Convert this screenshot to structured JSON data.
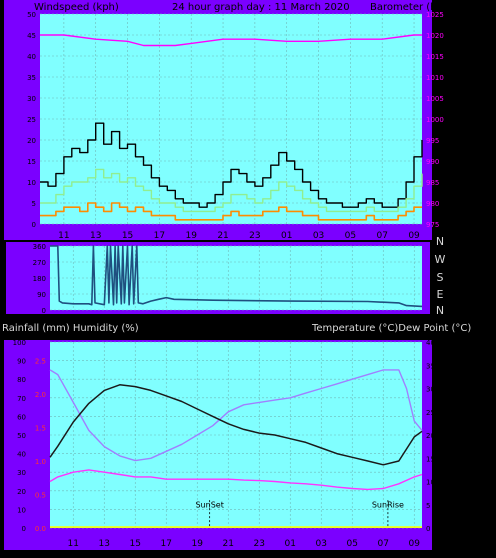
{
  "colors": {
    "frame_bg": "#7B00FF",
    "plot_bg": "#80FFFF",
    "grid": "#6FB8B8",
    "text": "#000000",
    "label_light": "#D8D8D8",
    "pressure": "#FF00FF",
    "wind_gust": "#000000",
    "wind_avg": "#90EE90",
    "wind_low": "#FF8C00",
    "direction": "#1F4F7F",
    "temperature": "#FF33FF",
    "humidity": "#1A1A1A",
    "dewpoint": "#A080FF",
    "rain": "#FFFF00"
  },
  "chart_data": [
    {
      "id": "wind_pressure",
      "type": "line",
      "title": "24 hour graph day : 11 March 2020",
      "left_axis_label": "Windspeed (kph)",
      "right_axis_label": "Barometer (hpa)",
      "x_tick_labels": [
        "11",
        "13",
        "15",
        "17",
        "19",
        "21",
        "23",
        "01",
        "03",
        "05",
        "07",
        "09"
      ],
      "left_ticks": [
        "0",
        "5",
        "10",
        "15",
        "20",
        "25",
        "30",
        "35",
        "40",
        "45",
        "50"
      ],
      "right_ticks": [
        "975",
        "980",
        "985",
        "990",
        "995",
        "1000",
        "1005",
        "1010",
        "1015",
        "1020",
        "1025"
      ],
      "left_range": [
        0,
        50
      ],
      "right_range": [
        975,
        1025
      ],
      "x_range": [
        9.5,
        33.5
      ],
      "series": {
        "pressure": {
          "x": [
            9.5,
            11,
            13,
            15,
            16,
            17,
            18,
            19,
            21,
            23,
            25,
            27,
            29,
            31,
            33,
            33.5
          ],
          "y": [
            1020,
            1020,
            1019,
            1018.5,
            1017.5,
            1017.5,
            1017.5,
            1018,
            1019,
            1019,
            1018.5,
            1018.5,
            1019,
            1019,
            1020,
            1020
          ]
        },
        "wind_gust": {
          "x": [
            9.5,
            10,
            10.5,
            11,
            11.5,
            12,
            12.5,
            13,
            13.5,
            14,
            14.5,
            15,
            15.5,
            16,
            16.5,
            17,
            17.5,
            18,
            18.5,
            19,
            19.5,
            20,
            20.5,
            21,
            21.5,
            22,
            22.5,
            23,
            23.5,
            24,
            24.5,
            25,
            25.5,
            26,
            26.5,
            27,
            27.5,
            28,
            28.5,
            29,
            29.5,
            30,
            30.5,
            31,
            31.5,
            32,
            32.5,
            33,
            33.5
          ],
          "y": [
            10,
            9,
            12,
            16,
            18,
            17,
            20,
            24,
            19,
            22,
            18,
            19,
            16,
            14,
            11,
            9,
            8,
            6,
            5,
            5,
            4,
            5,
            7,
            10,
            13,
            12,
            10,
            9,
            11,
            14,
            17,
            15,
            13,
            10,
            8,
            6,
            5,
            5,
            4,
            4,
            5,
            6,
            5,
            4,
            4,
            6,
            10,
            16,
            20
          ]
        },
        "wind_avg": {
          "x": [
            9.5,
            10,
            10.5,
            11,
            11.5,
            12,
            12.5,
            13,
            13.5,
            14,
            14.5,
            15,
            15.5,
            16,
            16.5,
            17,
            17.5,
            18,
            18.5,
            19,
            19.5,
            20,
            20.5,
            21,
            21.5,
            22,
            22.5,
            23,
            23.5,
            24,
            24.5,
            25,
            25.5,
            26,
            26.5,
            27,
            27.5,
            28,
            28.5,
            29,
            29.5,
            30,
            30.5,
            31,
            31.5,
            32,
            32.5,
            33,
            33.5
          ],
          "y": [
            5,
            5,
            7,
            9,
            10,
            10,
            11,
            13,
            11,
            12,
            10,
            11,
            9,
            8,
            6,
            5,
            5,
            4,
            3,
            3,
            3,
            3,
            4,
            5,
            7,
            7,
            6,
            5,
            6,
            8,
            10,
            9,
            8,
            6,
            5,
            4,
            3,
            3,
            3,
            3,
            3,
            4,
            3,
            3,
            3,
            4,
            6,
            9,
            12
          ]
        },
        "wind_low": {
          "x": [
            9.5,
            10,
            10.5,
            11,
            11.5,
            12,
            12.5,
            13,
            13.5,
            14,
            14.5,
            15,
            15.5,
            16,
            16.5,
            17,
            17.5,
            18,
            18.5,
            19,
            19.5,
            20,
            20.5,
            21,
            21.5,
            22,
            22.5,
            23,
            23.5,
            24,
            24.5,
            25,
            25.5,
            26,
            26.5,
            27,
            27.5,
            28,
            28.5,
            29,
            29.5,
            30,
            30.5,
            31,
            31.5,
            32,
            32.5,
            33,
            33.5
          ],
          "y": [
            2,
            2,
            3,
            4,
            4,
            3,
            5,
            4,
            3,
            5,
            4,
            3,
            4,
            3,
            2,
            2,
            2,
            1,
            1,
            1,
            1,
            1,
            1,
            2,
            3,
            2,
            2,
            2,
            3,
            3,
            4,
            3,
            3,
            2,
            2,
            1,
            1,
            1,
            1,
            1,
            1,
            2,
            1,
            1,
            1,
            2,
            3,
            4,
            4
          ]
        }
      }
    },
    {
      "id": "wind_direction",
      "type": "line",
      "direction_labels": [
        "N",
        "W",
        "S",
        "E",
        "N"
      ],
      "left_ticks": [
        "360",
        "270",
        "180",
        "90",
        "0"
      ],
      "y_range": [
        0,
        360
      ],
      "x_range": [
        9.5,
        33.5
      ],
      "series": {
        "direction": {
          "x": [
            9.5,
            9.8,
            10.0,
            10.1,
            10.3,
            11,
            12,
            12.2,
            12.3,
            12.4,
            13,
            13.2,
            13.3,
            13.4,
            13.6,
            13.7,
            13.8,
            13.9,
            14.1,
            14.2,
            14.3,
            14.5,
            14.6,
            14.8,
            14.9,
            15.1,
            15.2,
            15.5,
            16,
            16.5,
            17,
            17.5,
            20,
            25,
            30,
            32,
            32.5,
            33.5
          ],
          "y": [
            360,
            360,
            360,
            50,
            40,
            35,
            35,
            30,
            360,
            40,
            30,
            360,
            40,
            360,
            30,
            360,
            40,
            360,
            35,
            360,
            40,
            360,
            30,
            360,
            35,
            360,
            40,
            35,
            50,
            60,
            70,
            60,
            55,
            50,
            48,
            40,
            25,
            20
          ]
        }
      }
    },
    {
      "id": "temp_humidity",
      "type": "line",
      "left_axis_label": "Rainfall (mm)  Humidity (%)",
      "right_axis_label": "Temperature (°C)Dew Point (°C)",
      "x_tick_labels": [
        "11",
        "13",
        "15",
        "17",
        "19",
        "21",
        "23",
        "01",
        "03",
        "05",
        "07",
        "09"
      ],
      "left_ticks": [
        "0",
        "10",
        "20",
        "30",
        "40",
        "50",
        "60",
        "70",
        "80",
        "90",
        "100"
      ],
      "rain_ticks": [
        "0.0",
        "0.5",
        "1.0",
        "1.5",
        "2.0",
        "2.5"
      ],
      "right_ticks": [
        "0",
        "5",
        "10",
        "15",
        "20",
        "25",
        "30",
        "35",
        "40"
      ],
      "left_range": [
        0,
        100
      ],
      "right_range": [
        0,
        40
      ],
      "x_range": [
        9.5,
        33.5
      ],
      "annotations": [
        {
          "label": "SunSet",
          "x": 19.8
        },
        {
          "label": "SunRise",
          "x": 31.3
        }
      ],
      "series": {
        "humidity": {
          "x": [
            9.5,
            10,
            11,
            12,
            13,
            14,
            15,
            16,
            17,
            18,
            19,
            20,
            21,
            22,
            23,
            24,
            25,
            26,
            27,
            28,
            29,
            30,
            31,
            32,
            33,
            33.5
          ],
          "y": [
            38,
            44,
            57,
            67,
            74,
            77,
            76,
            74,
            71,
            68,
            64,
            60,
            56,
            53,
            51,
            50,
            48,
            46,
            43,
            40,
            38,
            36,
            34,
            36,
            49,
            52
          ]
        },
        "temperature": {
          "x": [
            9.5,
            10,
            11,
            12,
            13,
            14,
            15,
            16,
            17,
            18,
            19,
            20,
            21,
            22,
            23,
            24,
            25,
            26,
            27,
            28,
            29,
            30,
            31,
            31.5,
            32,
            32.5,
            33,
            33.5
          ],
          "y": [
            34,
            33,
            27,
            21,
            17.5,
            15.5,
            14.5,
            15,
            16.5,
            18,
            20,
            22,
            25,
            26.5,
            27,
            27.5,
            28,
            29,
            30,
            31,
            32,
            33,
            34,
            34,
            34,
            30,
            23,
            21
          ]
        },
        "dewpoint": {
          "x": [
            9.5,
            10,
            11,
            12,
            13,
            14,
            15,
            16,
            17,
            18,
            19,
            20,
            21,
            22,
            23,
            24,
            25,
            26,
            27,
            28,
            29,
            30,
            31,
            32,
            33,
            33.5
          ],
          "y": [
            10,
            11,
            12,
            12.5,
            12,
            11.5,
            11,
            11,
            10.5,
            10.5,
            10.5,
            10.5,
            10.5,
            10.3,
            10.2,
            10,
            9.7,
            9.5,
            9.2,
            8.8,
            8.5,
            8.3,
            8.5,
            9.5,
            11,
            11.5
          ]
        },
        "rain": {
          "x": [
            9.5,
            33.5
          ],
          "y": [
            0,
            0
          ]
        }
      }
    }
  ]
}
